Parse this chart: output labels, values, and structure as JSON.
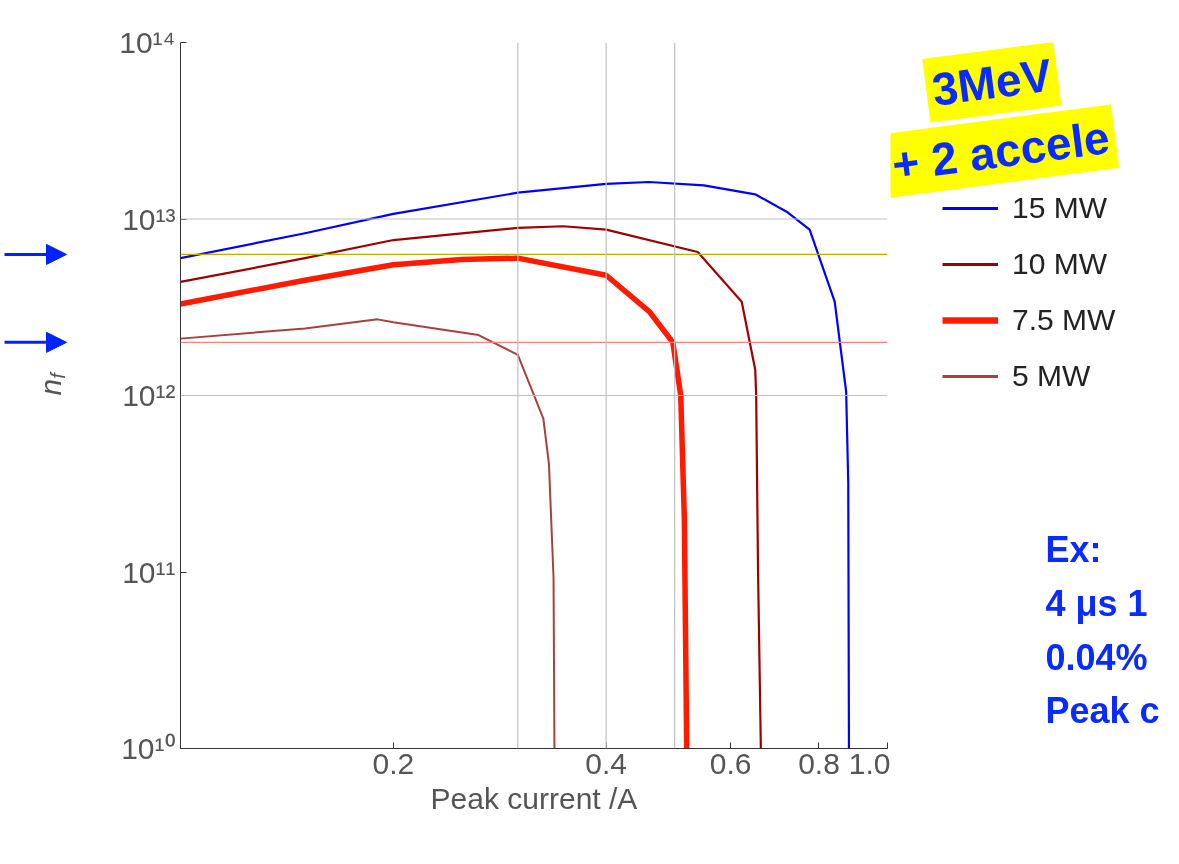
{
  "chart_data": {
    "type": "line",
    "xlabel": "Peak current /A",
    "ylabel": "n$_{f}$",
    "log": "xy",
    "xlim": [
      0.1,
      1.0
    ],
    "ylim": [
      10000000000.0,
      100000000000000.0
    ],
    "xticks": [
      0.2,
      0.4,
      0.6,
      0.8,
      {
        "value": 1.0,
        "label": "1.0"
      }
    ],
    "yticks": [
      {
        "value": 10000000000.0,
        "label": "10¹⁰"
      },
      {
        "value": 100000000000.0,
        "label": "10¹¹"
      },
      {
        "value": 1000000000000.0,
        "label": "10¹²"
      },
      {
        "value": 10000000000000.0,
        "label": "10¹³"
      },
      {
        "value": 100000000000000.0,
        "label": "10¹⁴"
      }
    ],
    "legend": "right",
    "grid": false,
    "series": [
      {
        "name": "15 MW",
        "color": "#0000ff",
        "x": [
          0.1,
          0.15,
          0.2,
          0.3,
          0.4,
          0.46,
          0.55,
          0.65,
          0.72,
          0.776,
          0.842,
          0.874,
          0.88,
          0.882
        ],
        "values": [
          6000000000000.0,
          8300000000000.0,
          10700000000000.0,
          14100000000000.0,
          15800000000000.0,
          16200000000000.0,
          15500000000000.0,
          13800000000000.0,
          11000000000000.0,
          8700000000000.0,
          3400000000000.0,
          1050000000000.0,
          320000000000.0,
          10000000000.0
        ]
      },
      {
        "name": "10 MW",
        "color": "#a00000",
        "x": [
          0.1,
          0.15,
          0.2,
          0.3,
          0.348,
          0.4,
          0.539,
          0.622,
          0.65,
          0.652,
          0.656,
          0.662
        ],
        "values": [
          4400000000000.0,
          6000000000000.0,
          7600000000000.0,
          8900000000000.0,
          9100000000000.0,
          8700000000000.0,
          6500000000000.0,
          3400000000000.0,
          1400000000000.0,
          1000000000000.0,
          100000000000.0,
          10000000000.0
        ]
      },
      {
        "name": "7.5 MW",
        "color": "#ff1a00",
        "x": [
          0.1,
          0.15,
          0.2,
          0.25,
          0.3,
          0.4,
          0.46,
          0.497,
          0.51,
          0.516,
          0.52
        ],
        "values": [
          3300000000000.0,
          4500000000000.0,
          5500000000000.0,
          5900000000000.0,
          6000000000000.0,
          4800000000000.0,
          3000000000000.0,
          2000000000000.0,
          1000000000000.0,
          200000000000.0,
          10000000000.0
        ]
      },
      {
        "name": "5 MW",
        "color": "#a84040",
        "x": [
          0.1,
          0.15,
          0.19,
          0.2,
          0.264,
          0.3,
          0.326,
          0.332,
          0.337,
          0.338
        ],
        "values": [
          2100000000000.0,
          2400000000000.0,
          2700000000000.0,
          2600000000000.0,
          2200000000000.0,
          1700000000000.0,
          740000000000.0,
          410000000000.0,
          93000000000.0,
          10000000000.0
        ]
      }
    ],
    "ref_lines": [
      {
        "axis": "y",
        "value": 6300000000000.0,
        "color": "#b5b500"
      },
      {
        "axis": "y",
        "value": 2000000000000.0,
        "color": "#ff8080"
      },
      {
        "axis": "x",
        "value": 0.3,
        "color": "#c0c0c0"
      },
      {
        "axis": "x",
        "value": 0.4,
        "color": "#c0c0c0"
      },
      {
        "axis": "x",
        "value": 0.5,
        "color": "#c0c0c0"
      },
      {
        "axis": "y",
        "value": 1000000000000.0,
        "color": "#c0c0c0"
      },
      {
        "axis": "y",
        "value": 10000000000000.0,
        "color": "#c0c0c0"
      }
    ],
    "annotations": [
      "3MeV",
      "+ 2 accele",
      "Ex:",
      "4 μs 1",
      "0.04%",
      "Peak c"
    ]
  }
}
